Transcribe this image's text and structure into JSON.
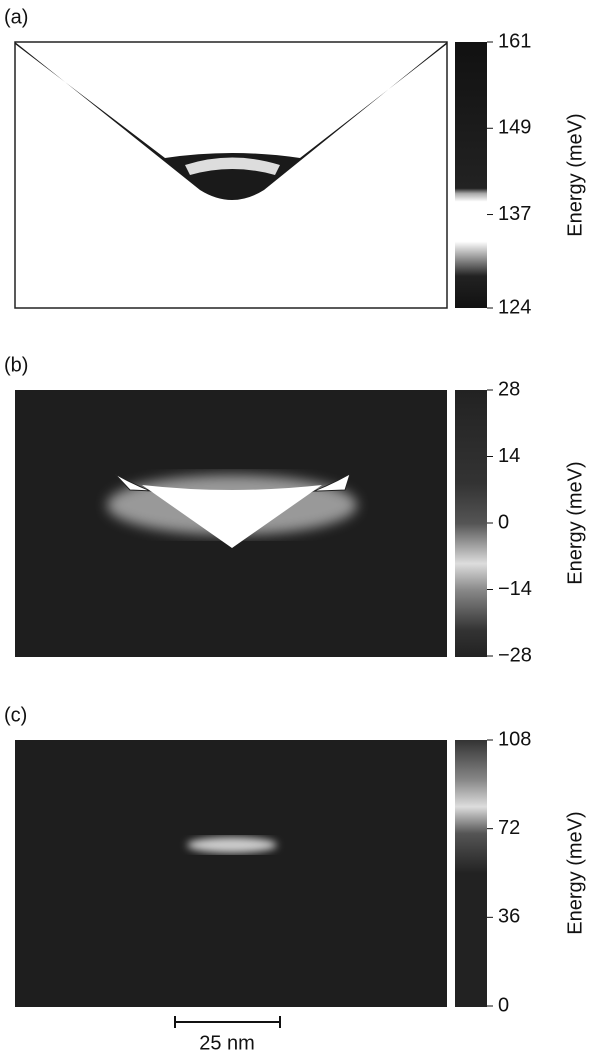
{
  "chart_data": [
    {
      "type": "heatmap",
      "panel_label": "(a)",
      "colorbar_label": "Energy (meV)",
      "clim": [
        124,
        161
      ],
      "cticks": [
        124,
        137,
        149,
        161
      ]
    },
    {
      "type": "heatmap",
      "panel_label": "(b)",
      "colorbar_label": "Energy (meV)",
      "clim": [
        -28,
        28
      ],
      "cticks": [
        {
          "value": -28,
          "label": "−28"
        },
        {
          "value": -14,
          "label": "−14"
        },
        0,
        14,
        28
      ]
    },
    {
      "type": "heatmap",
      "panel_label": "(c)",
      "colorbar_label": "Energy (meV)",
      "clim": [
        0,
        108
      ],
      "cticks": [
        0,
        36,
        72,
        108
      ],
      "scale_bar": "25 nm"
    }
  ]
}
